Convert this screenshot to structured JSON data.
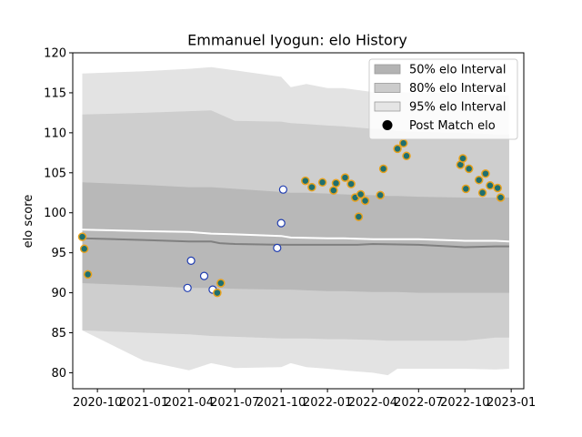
{
  "chart_data": {
    "type": "scatter",
    "title": "Emmanuel Iyogun: elo History",
    "xlabel": "",
    "ylabel": "elo score",
    "xlim": [
      "2020-08-13",
      "2023-01-26"
    ],
    "ylim": [
      78,
      120
    ],
    "x_ticks": [
      "2020-10",
      "2021-01",
      "2021-04",
      "2021-07",
      "2021-10",
      "2022-01",
      "2022-04",
      "2022-07",
      "2022-10",
      "2023-01"
    ],
    "y_ticks": [
      80,
      85,
      90,
      95,
      100,
      105,
      110,
      115,
      120
    ],
    "grid": false,
    "legend_position": "top-right",
    "legend": [
      {
        "label": "50% elo Interval",
        "color": "#b3b3b3"
      },
      {
        "label": "80% elo Interval",
        "color": "#cccccc"
      },
      {
        "label": "95% elo Interval",
        "color": "#e5e5e5"
      },
      {
        "label": "Post Match elo",
        "color": "#000000"
      }
    ],
    "colors": {
      "band50": "#b8b8b8",
      "band80": "#cecece",
      "band95": "#e3e3e3",
      "median_line": "#808080",
      "mean_line": "#ffffff",
      "match_fill": "#1f6f6f",
      "match_edge": "#e8a21e",
      "open_edge": "#1f3cb0",
      "open_fill": "#ffffff"
    },
    "bands": [
      {
        "name": "95% elo Interval",
        "x": [
          "2020-09-01",
          "2021-01-01",
          "2021-04-01",
          "2021-05-15",
          "2021-07-01",
          "2021-10-01",
          "2021-10-20",
          "2021-11-20",
          "2022-01-01",
          "2022-02-01",
          "2022-04-01",
          "2022-05-01",
          "2022-05-20",
          "2022-07-01",
          "2022-10-01",
          "2022-12-01",
          "2022-12-28"
        ],
        "upper": [
          117.4,
          117.7,
          118.0,
          118.2,
          117.8,
          117.0,
          115.7,
          116.1,
          115.6,
          115.6,
          115.1,
          115.1,
          115.1,
          115.0,
          115.0,
          114.7,
          114.7
        ],
        "lower": [
          85.3,
          81.5,
          80.3,
          81.2,
          80.6,
          80.7,
          81.2,
          80.7,
          80.5,
          80.3,
          80.0,
          79.7,
          80.5,
          80.5,
          80.5,
          80.4,
          80.5
        ]
      },
      {
        "name": "80% elo Interval",
        "x": [
          "2020-09-01",
          "2021-01-01",
          "2021-04-01",
          "2021-05-15",
          "2021-07-01",
          "2021-10-01",
          "2021-10-20",
          "2021-11-20",
          "2022-01-01",
          "2022-02-01",
          "2022-04-01",
          "2022-05-01",
          "2022-05-20",
          "2022-07-01",
          "2022-10-01",
          "2022-12-01",
          "2022-12-28"
        ],
        "upper": [
          112.3,
          112.5,
          112.7,
          112.8,
          111.5,
          111.4,
          111.2,
          111.1,
          110.9,
          110.8,
          110.5,
          110.4,
          110.2,
          110.1,
          110.0,
          109.8,
          109.8
        ],
        "lower": [
          85.3,
          85.0,
          84.8,
          84.6,
          84.5,
          84.3,
          84.3,
          84.3,
          84.2,
          84.2,
          84.1,
          84.0,
          84.0,
          84.0,
          84.0,
          84.4,
          84.4
        ]
      },
      {
        "name": "50% elo Interval",
        "x": [
          "2020-09-01",
          "2021-01-01",
          "2021-04-01",
          "2021-05-15",
          "2021-07-01",
          "2021-10-01",
          "2021-10-20",
          "2021-11-20",
          "2022-01-01",
          "2022-02-01",
          "2022-04-01",
          "2022-05-01",
          "2022-05-20",
          "2022-07-01",
          "2022-10-01",
          "2022-12-01",
          "2022-12-28"
        ],
        "upper": [
          103.8,
          103.5,
          103.2,
          103.2,
          103.0,
          102.6,
          102.5,
          102.5,
          102.4,
          102.3,
          102.2,
          102.1,
          102.1,
          102.0,
          101.9,
          101.9,
          101.9
        ],
        "lower": [
          91.2,
          90.9,
          90.6,
          90.6,
          90.5,
          90.4,
          90.4,
          90.3,
          90.2,
          90.2,
          90.1,
          90.1,
          90.1,
          90.0,
          90.0,
          90.0,
          90.0
        ]
      }
    ],
    "median_line": {
      "x": [
        "2020-09-01",
        "2021-01-01",
        "2021-04-01",
        "2021-05-15",
        "2021-06-01",
        "2021-07-01",
        "2021-10-01",
        "2021-10-20",
        "2022-01-01",
        "2022-02-01",
        "2022-03-01",
        "2022-04-01",
        "2022-07-01",
        "2022-10-01",
        "2022-12-01",
        "2022-12-28"
      ],
      "y": [
        96.8,
        96.6,
        96.4,
        96.4,
        96.2,
        96.1,
        96.0,
        96.0,
        96.0,
        96.0,
        96.0,
        96.1,
        96.0,
        95.7,
        95.8,
        95.8
      ]
    },
    "mean_line": {
      "x": [
        "2020-09-01",
        "2021-01-01",
        "2021-04-01",
        "2021-05-15",
        "2021-07-01",
        "2021-10-01",
        "2021-10-20",
        "2022-01-01",
        "2022-02-01",
        "2022-04-01",
        "2022-07-01",
        "2022-10-01",
        "2022-12-01",
        "2022-12-28"
      ],
      "y": [
        97.9,
        97.7,
        97.6,
        97.4,
        97.3,
        97.1,
        96.9,
        96.8,
        96.8,
        96.7,
        96.7,
        96.5,
        96.5,
        96.4
      ]
    },
    "match_points": {
      "x": [
        "2020-09-01",
        "2020-09-05",
        "2020-09-12",
        "2021-05-27",
        "2021-06-03",
        "2021-11-18",
        "2021-12-01",
        "2021-12-22",
        "2022-01-13",
        "2022-01-18",
        "2022-02-05",
        "2022-02-17",
        "2022-02-25",
        "2022-03-04",
        "2022-03-08",
        "2022-03-17",
        "2022-04-16",
        "2022-04-22",
        "2022-05-20",
        "2022-06-01",
        "2022-06-07",
        "2022-09-22",
        "2022-09-27",
        "2022-10-03",
        "2022-10-09",
        "2022-10-29",
        "2022-11-05",
        "2022-11-11",
        "2022-11-20",
        "2022-12-05",
        "2022-12-11"
      ],
      "y": [
        97.0,
        95.5,
        92.3,
        90.0,
        91.2,
        104.0,
        103.2,
        103.8,
        102.8,
        103.7,
        104.4,
        103.6,
        101.9,
        99.5,
        102.3,
        101.5,
        102.2,
        105.5,
        108.0,
        108.7,
        107.1,
        106.0,
        106.8,
        103.0,
        105.5,
        104.1,
        102.5,
        104.9,
        103.4,
        103.1,
        101.9
      ]
    },
    "open_points": {
      "x": [
        "2021-03-29",
        "2021-04-05",
        "2021-05-01",
        "2021-05-18",
        "2021-09-23",
        "2021-10-01",
        "2021-10-05"
      ],
      "y": [
        90.6,
        94.0,
        92.1,
        90.4,
        95.6,
        98.7,
        102.9
      ]
    }
  }
}
